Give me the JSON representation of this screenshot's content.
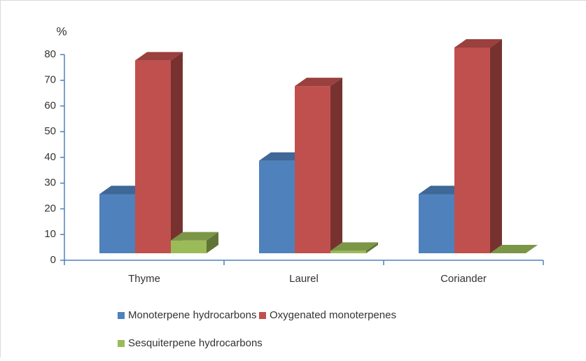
{
  "chart_data": {
    "type": "bar3d",
    "ylabel": "%",
    "categories": [
      "Thyme",
      "Laurel",
      "Coriander"
    ],
    "series": [
      {
        "name": "Monoterpene hydrocarbons",
        "color": "#4f81bd",
        "values": [
          23,
          36,
          23
        ]
      },
      {
        "name": "Oxygenated monoterpenes",
        "color": "#c0504d",
        "values": [
          75,
          65,
          80
        ]
      },
      {
        "name": "Sesquiterpene hydrocarbons",
        "color": "#9bbb59",
        "values": [
          5,
          1,
          0
        ]
      }
    ],
    "ylim": [
      0,
      80
    ],
    "yticks": [
      0,
      10,
      20,
      30,
      40,
      50,
      60,
      70,
      80
    ],
    "legend": "bottom"
  }
}
